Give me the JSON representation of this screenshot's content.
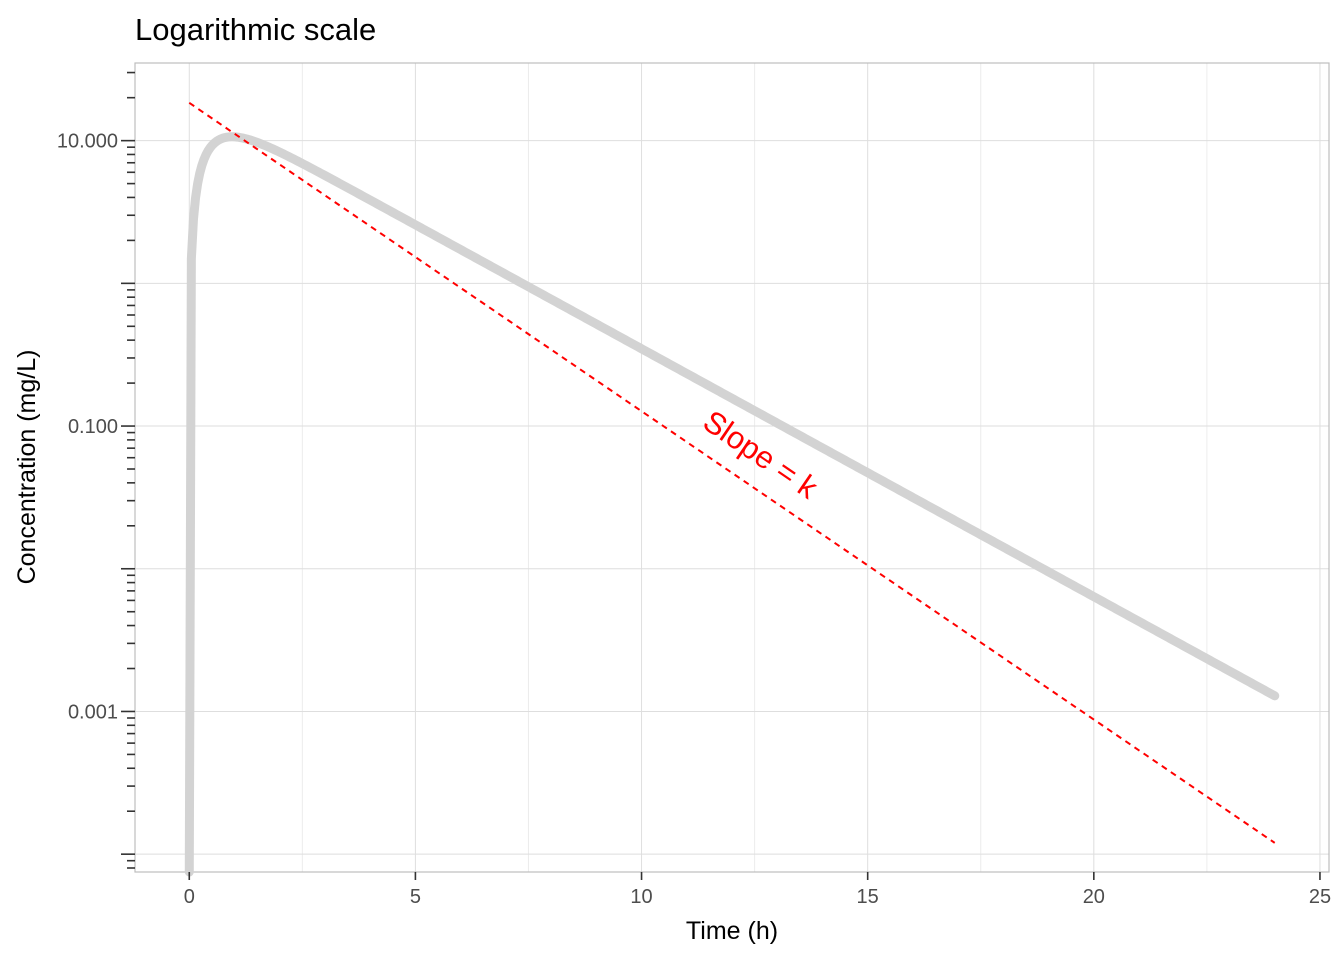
{
  "chart_data": {
    "type": "line",
    "title": "Logarithmic scale",
    "xlabel": "Time (h)",
    "ylabel": "Concentration (mg/L)",
    "xlim": [
      -1.2,
      25.2
    ],
    "ylim": [
      7.5e-05,
      35
    ],
    "y_scale": "log10",
    "grid": true,
    "x_ticks": [
      0,
      5,
      10,
      15,
      20,
      25
    ],
    "x_tick_labels": [
      "0",
      "5",
      "10",
      "15",
      "20",
      "25"
    ],
    "y_ticks": [
      10,
      0.1,
      0.001
    ],
    "y_tick_labels": [
      "10.000",
      "0.100",
      "0.001"
    ],
    "annotation": {
      "text": "Slope = k",
      "x": 12.5,
      "y": 0.055,
      "color": "#ff0000"
    },
    "series": [
      {
        "kind": "concentration-curve",
        "color": "#d3d3d3",
        "model": {
          "dose_scale": 19.0,
          "ka": 2.2,
          "ke": 0.4,
          "t_start": 0,
          "t_end": 24
        }
      },
      {
        "kind": "terminal-slope-line",
        "color": "#ff0000",
        "style": "dashed",
        "x": [
          0,
          24
        ],
        "y": [
          18.4,
          0.00012
        ]
      }
    ]
  }
}
